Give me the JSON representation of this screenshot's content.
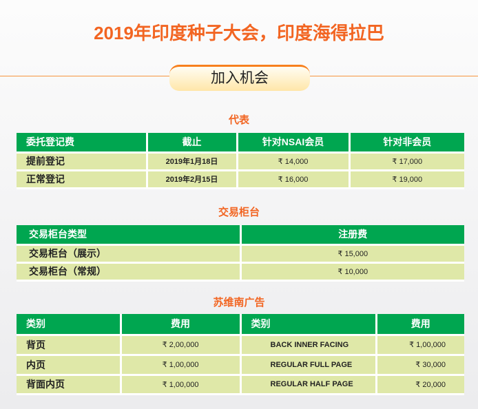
{
  "title": "2019年印度种子大会，印度海得拉巴",
  "banner": "加入机会",
  "delegate": {
    "heading": "代表",
    "headers": [
      "委托登记费",
      "截止",
      "针对NSAI会员",
      "针对非会员"
    ],
    "rows": [
      [
        "提前登记",
        "2019年1月18日",
        "₹ 14,000",
        "₹ 17,000"
      ],
      [
        "正常登记",
        "2019年2月15日",
        "₹ 16,000",
        "₹ 19,000"
      ]
    ]
  },
  "counter": {
    "heading": "交易柜台",
    "headers": [
      "交易柜台类型",
      "注册费"
    ],
    "rows": [
      [
        "交易柜台（展示）",
        "₹ 15,000"
      ],
      [
        "交易柜台（常规）",
        "₹ 10,000"
      ]
    ]
  },
  "ads": {
    "heading": "苏维南广告",
    "headers": [
      "类别",
      "费用",
      "类别",
      "费用"
    ],
    "rows": [
      [
        "背页",
        "₹ 2,00,000",
        "BACK INNER FACING",
        "₹ 1,00,000"
      ],
      [
        "内页",
        "₹ 1,00,000",
        "REGULAR FULL PAGE",
        "₹ 30,000"
      ],
      [
        "背面内页",
        "₹ 1,00,000",
        "REGULAR HALF PAGE",
        "₹ 20,000"
      ]
    ]
  }
}
